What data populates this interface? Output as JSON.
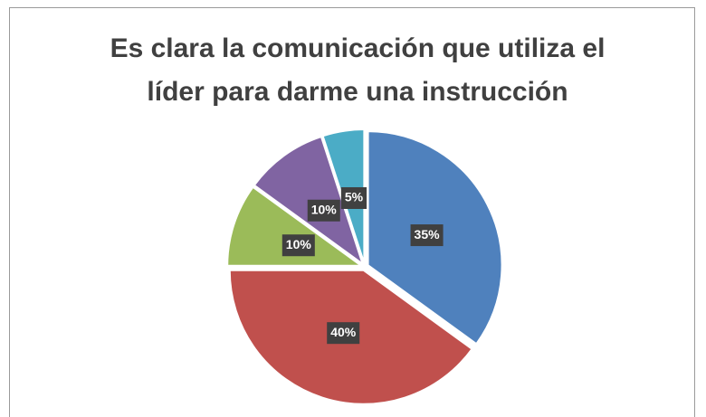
{
  "chart_data": {
    "type": "pie",
    "title": "Es clara la comunicación que utiliza el líder para darme una instrucción",
    "values": [
      35,
      40,
      10,
      10,
      5
    ],
    "value_labels": [
      "35%",
      "40%",
      "10%",
      "10%",
      "5%"
    ],
    "colors": [
      "#4f81bd",
      "#c0504d",
      "#9bbb59",
      "#8064a2",
      "#4bacc6"
    ]
  }
}
